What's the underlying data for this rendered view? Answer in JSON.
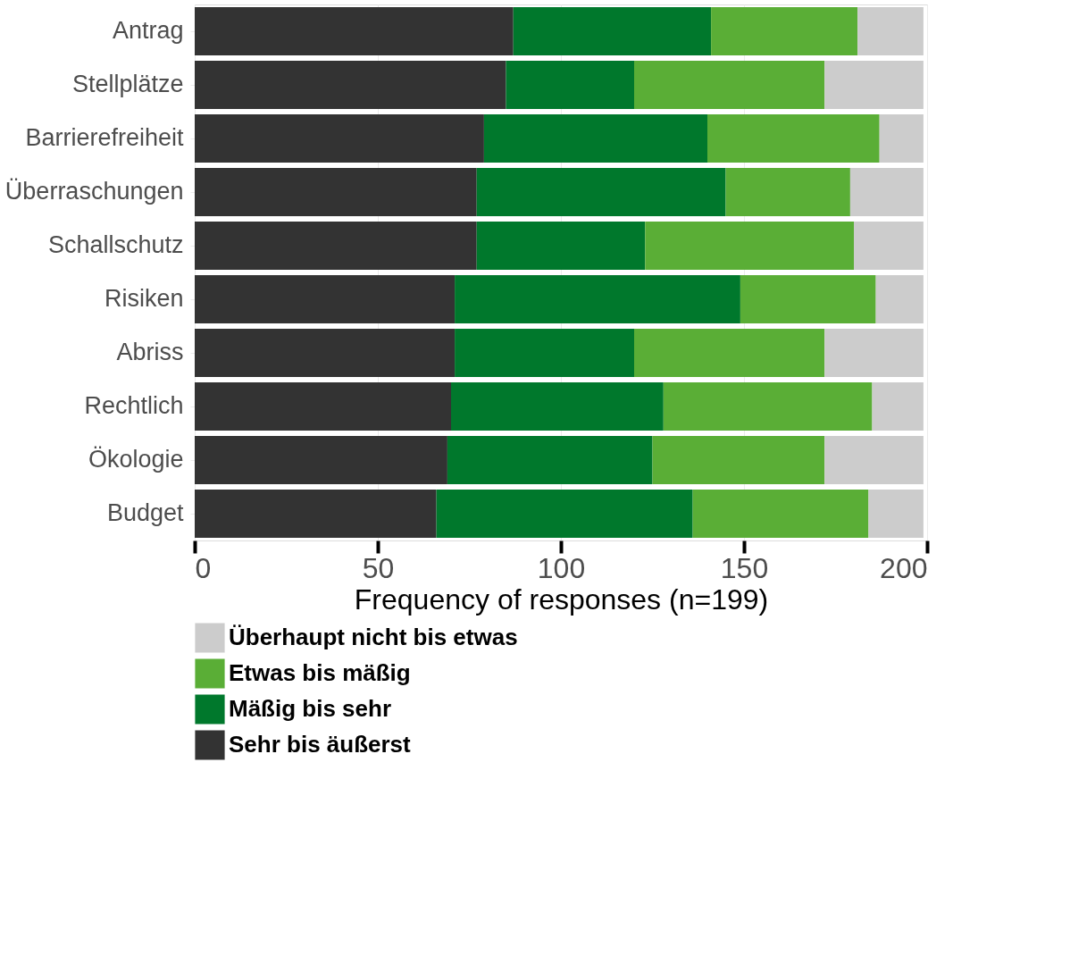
{
  "chart_data": {
    "type": "bar",
    "orientation": "horizontal",
    "stacked": true,
    "xlabel": "Frequency of responses (n=199)",
    "categories": [
      "Antrag",
      "Stellplätze",
      "Barrierefreiheit",
      "Überraschungen",
      "Schallschutz",
      "Risiken",
      "Abriss",
      "Rechtlich",
      "Ökologie",
      "Budget"
    ],
    "series": [
      {
        "name": "Sehr bis äußerst",
        "color": "#333333",
        "values": [
          87,
          85,
          79,
          77,
          77,
          71,
          71,
          70,
          69,
          66
        ]
      },
      {
        "name": "Mäßig bis sehr",
        "color": "#00782c",
        "values": [
          54,
          35,
          61,
          68,
          46,
          78,
          49,
          58,
          56,
          70
        ]
      },
      {
        "name": "Etwas bis mäßig",
        "color": "#5aae36",
        "values": [
          40,
          52,
          47,
          34,
          57,
          37,
          52,
          57,
          47,
          48
        ]
      },
      {
        "name": "Überhaupt nicht bis etwas",
        "color": "#cccccc",
        "values": [
          18,
          27,
          12,
          20,
          19,
          13,
          27,
          14,
          27,
          15
        ]
      }
    ],
    "xlim": [
      0,
      200
    ],
    "xticks": [
      0,
      50,
      100,
      150,
      200
    ],
    "grid": "x",
    "legend": "bottom left"
  }
}
